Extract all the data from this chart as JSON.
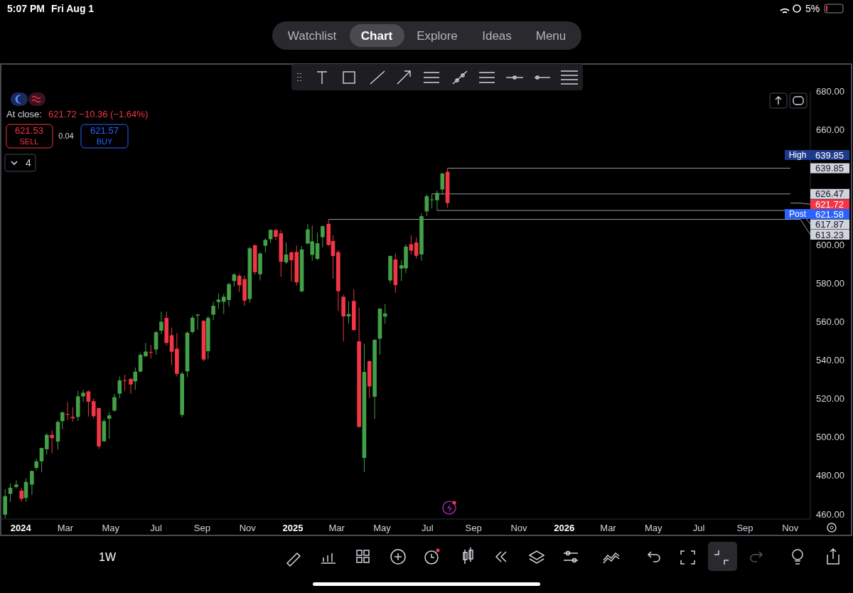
{
  "chart_data": {
    "type": "candlestick",
    "x": [
      "2023-12-11",
      "2023-12-18",
      "2023-12-26",
      "2024-01-02",
      "2024-01-08",
      "2024-01-16",
      "2024-01-22",
      "2024-01-29",
      "2024-02-05",
      "2024-02-12",
      "2024-02-20",
      "2024-02-26",
      "2024-03-04",
      "2024-03-11",
      "2024-03-18",
      "2024-03-25",
      "2024-04-01",
      "2024-04-08",
      "2024-04-15",
      "2024-04-22",
      "2024-04-29",
      "2024-05-06",
      "2024-05-13",
      "2024-05-20",
      "2024-05-28",
      "2024-06-03",
      "2024-06-10",
      "2024-06-17",
      "2024-06-24",
      "2024-07-01",
      "2024-07-08",
      "2024-07-15",
      "2024-07-22",
      "2024-07-29",
      "2024-08-05",
      "2024-08-12",
      "2024-08-19",
      "2024-08-26",
      "2024-09-03",
      "2024-09-09",
      "2024-09-16",
      "2024-09-23",
      "2024-09-30",
      "2024-10-07",
      "2024-10-14",
      "2024-10-21",
      "2024-10-28",
      "2024-11-04",
      "2024-11-11",
      "2024-11-18",
      "2024-11-25",
      "2024-12-02",
      "2024-12-09",
      "2024-12-16",
      "2024-12-23",
      "2024-12-30",
      "2025-01-06",
      "2025-01-13",
      "2025-01-21",
      "2025-01-27",
      "2025-02-03",
      "2025-02-10",
      "2025-02-18",
      "2025-02-24",
      "2025-03-03",
      "2025-03-10",
      "2025-03-17",
      "2025-03-24",
      "2025-03-31",
      "2025-04-07",
      "2025-04-14",
      "2025-04-21",
      "2025-04-28",
      "2025-05-05",
      "2025-05-12",
      "2025-05-19",
      "2025-05-27",
      "2025-06-02",
      "2025-06-09",
      "2025-06-16",
      "2025-06-23",
      "2025-06-30",
      "2025-07-07",
      "2025-07-14",
      "2025-07-21",
      "2025-07-28"
    ],
    "ohlc": [
      [
        459.7,
        473.0,
        457.9,
        469.3
      ],
      [
        470.5,
        475.9,
        466.3,
        473.7
      ],
      [
        474.1,
        477.6,
        473.3,
        475.3
      ],
      [
        472.2,
        473.7,
        466.4,
        467.9
      ],
      [
        468.4,
        478.6,
        466.4,
        476.7
      ],
      [
        475.3,
        482.7,
        469.9,
        482.4
      ],
      [
        484.0,
        488.8,
        482.8,
        487.4
      ],
      [
        487.4,
        494.4,
        481.7,
        494.4
      ],
      [
        493.7,
        502.0,
        491.0,
        501.2
      ],
      [
        501.2,
        503.5,
        491.6,
        499.5
      ],
      [
        497.7,
        508.8,
        493.4,
        507.9
      ],
      [
        508.3,
        513.3,
        504.1,
        512.9
      ],
      [
        512.0,
        518.2,
        508.9,
        511.7
      ],
      [
        510.5,
        515.5,
        508.1,
        509.8
      ],
      [
        510.5,
        524.1,
        508.4,
        521.2
      ],
      [
        521.2,
        524.6,
        518.3,
        523.1
      ],
      [
        523.8,
        524.4,
        510.7,
        518.4
      ],
      [
        518.7,
        520.1,
        509.6,
        510.9
      ],
      [
        515.1,
        515.3,
        493.9,
        495.2
      ],
      [
        497.8,
        509.6,
        497.7,
        508.3
      ],
      [
        509.6,
        513.0,
        499.1,
        511.3
      ],
      [
        513.8,
        522.6,
        513.3,
        520.8
      ],
      [
        522.6,
        531.5,
        520.2,
        529.5
      ],
      [
        529.6,
        532.5,
        524.2,
        529.4
      ],
      [
        530.3,
        530.5,
        522.6,
        527.4
      ],
      [
        529.0,
        536.2,
        524.6,
        534.0
      ],
      [
        534.1,
        543.8,
        533.6,
        542.8
      ],
      [
        542.1,
        549.0,
        541.6,
        544.5
      ],
      [
        544.3,
        547.9,
        540.9,
        544.2
      ],
      [
        545.6,
        555.1,
        542.9,
        554.6
      ],
      [
        555.4,
        565.2,
        553.5,
        560.0
      ],
      [
        562.0,
        565.2,
        547.6,
        549.0
      ],
      [
        553.0,
        557.0,
        537.5,
        544.4
      ],
      [
        546.0,
        554.1,
        531.5,
        532.9
      ],
      [
        511.6,
        534.0,
        510.3,
        533.0
      ],
      [
        534.2,
        555.0,
        531.2,
        554.3
      ],
      [
        554.7,
        563.2,
        553.9,
        562.1
      ],
      [
        563.2,
        564.2,
        555.8,
        563.7
      ],
      [
        560.5,
        560.8,
        539.4,
        540.4
      ],
      [
        544.7,
        563.0,
        540.6,
        562.0
      ],
      [
        563.7,
        570.4,
        560.8,
        568.3
      ],
      [
        570.3,
        574.7,
        566.8,
        571.5
      ],
      [
        570.4,
        574.4,
        564.0,
        573.0
      ],
      [
        571.3,
        580.3,
        568.0,
        579.6
      ],
      [
        581.2,
        585.3,
        578.3,
        584.6
      ],
      [
        583.9,
        584.9,
        575.5,
        579.0
      ],
      [
        582.2,
        584.1,
        568.4,
        571.0
      ],
      [
        571.8,
        599.0,
        569.9,
        598.2
      ],
      [
        599.8,
        600.2,
        584.4,
        585.8
      ],
      [
        584.7,
        596.2,
        581.5,
        595.5
      ],
      [
        599.5,
        603.4,
        596.0,
        602.6
      ],
      [
        602.9,
        608.0,
        601.0,
        607.8
      ],
      [
        607.7,
        608.4,
        602.5,
        604.2
      ],
      [
        606.0,
        607.8,
        583.4,
        591.2
      ],
      [
        590.9,
        601.3,
        590.1,
        595.0
      ],
      [
        596.1,
        596.4,
        580.9,
        592.0
      ],
      [
        596.3,
        599.7,
        578.8,
        580.5
      ],
      [
        575.8,
        599.4,
        575.4,
        597.6
      ],
      [
        600.7,
        610.8,
        600.3,
        608.0
      ],
      [
        594.8,
        610.1,
        591.7,
        601.8
      ],
      [
        592.7,
        606.4,
        592.2,
        600.8
      ],
      [
        604.0,
        610.0,
        598.7,
        609.7
      ],
      [
        610.9,
        613.23,
        599.5,
        599.9
      ],
      [
        602.0,
        605.0,
        582.4,
        594.2
      ],
      [
        596.2,
        597.3,
        565.6,
        575.9
      ],
      [
        573.0,
        574.0,
        549.7,
        562.8
      ],
      [
        562.8,
        570.6,
        559.1,
        564.0
      ],
      [
        570.8,
        577.0,
        555.2,
        555.7
      ],
      [
        549.8,
        567.4,
        505.1,
        505.3
      ],
      [
        489.2,
        548.6,
        481.8,
        533.9
      ],
      [
        539.5,
        539.9,
        520.4,
        526.4
      ],
      [
        521.0,
        551.0,
        509.4,
        550.6
      ],
      [
        551.2,
        567.0,
        542.8,
        566.8
      ],
      [
        562.7,
        569.2,
        559.0,
        564.3
      ],
      [
        581.5,
        594.5,
        580.0,
        594.2
      ],
      [
        592.4,
        595.5,
        575.0,
        579.1
      ],
      [
        587.7,
        592.0,
        581.2,
        589.4
      ],
      [
        587.8,
        600.3,
        585.4,
        599.1
      ],
      [
        600.3,
        605.0,
        595.0,
        597.0
      ],
      [
        601.2,
        603.8,
        592.9,
        594.3
      ],
      [
        595.0,
        616.4,
        591.8,
        614.9
      ],
      [
        617.4,
        626.2,
        615.0,
        625.3
      ],
      [
        623.4,
        626.47,
        619.0,
        623.6
      ],
      [
        623.2,
        628.4,
        617.87,
        627.0
      ],
      [
        628.8,
        637.6,
        626.0,
        637.1
      ],
      [
        638.0,
        639.85,
        619.3,
        621.72
      ]
    ],
    "xlim": [
      "2023-12-06",
      "2026-11-28"
    ],
    "xticks": [
      {
        "value": "2024-01-01",
        "label": "2024"
      },
      {
        "value": "2024-03-01",
        "label": "Mar"
      },
      {
        "value": "2024-05-01",
        "label": "May"
      },
      {
        "value": "2024-07-01",
        "label": "Jul"
      },
      {
        "value": "2024-09-01",
        "label": "Sep"
      },
      {
        "value": "2024-11-01",
        "label": "Nov"
      },
      {
        "value": "2025-01-01",
        "label": "2025"
      },
      {
        "value": "2025-03-01",
        "label": "Mar"
      },
      {
        "value": "2025-05-01",
        "label": "May"
      },
      {
        "value": "2025-07-01",
        "label": "Jul"
      },
      {
        "value": "2025-09-01",
        "label": "Sep"
      },
      {
        "value": "2025-11-01",
        "label": "Nov"
      },
      {
        "value": "2026-01-01",
        "label": "2026"
      },
      {
        "value": "2026-03-01",
        "label": "Mar"
      },
      {
        "value": "2026-05-01",
        "label": "May"
      },
      {
        "value": "2026-07-01",
        "label": "Jul"
      },
      {
        "value": "2026-09-01",
        "label": "Sep"
      },
      {
        "value": "2026-11-01",
        "label": "Nov"
      }
    ],
    "ylim": [
      457.4,
      680
    ],
    "yticks": [
      {
        "value": 460,
        "label": "460.00"
      },
      {
        "value": 480,
        "label": "480.00"
      },
      {
        "value": 500,
        "label": "500.00"
      },
      {
        "value": 520,
        "label": "520.00"
      },
      {
        "value": 540,
        "label": "540.00"
      },
      {
        "value": 560,
        "label": "560.00"
      },
      {
        "value": 580,
        "label": "580.00"
      },
      {
        "value": 600,
        "label": "600.00"
      },
      {
        "value": 660,
        "label": "660.00"
      },
      {
        "value": 680,
        "label": "680.00"
      }
    ],
    "grid": false,
    "ref_lines": [
      {
        "axis": "y",
        "value": 639.85,
        "label": "639.85",
        "color": "#9598a1"
      },
      {
        "axis": "y",
        "value": 626.47,
        "label": "626.47",
        "color": "#9598a1"
      },
      {
        "axis": "y",
        "value": 617.87,
        "label": "617.87",
        "color": "#9598a1"
      },
      {
        "axis": "y",
        "value": 613.23,
        "label": "613.23",
        "color": "#9598a1"
      }
    ],
    "annotations": [
      "5:07 PM",
      "Fri Aug 1",
      "5%",
      "Watchlist",
      "Chart",
      "Explore",
      "Ideas",
      "Menu",
      "At close:",
      "621.72 −10.36 (−1.64%)",
      "621.53",
      "SELL",
      "0.04",
      "621.57",
      "BUY",
      "4",
      "1W",
      "High",
      "639.85",
      "Post",
      "621.58",
      "621.72"
    ]
  }
}
